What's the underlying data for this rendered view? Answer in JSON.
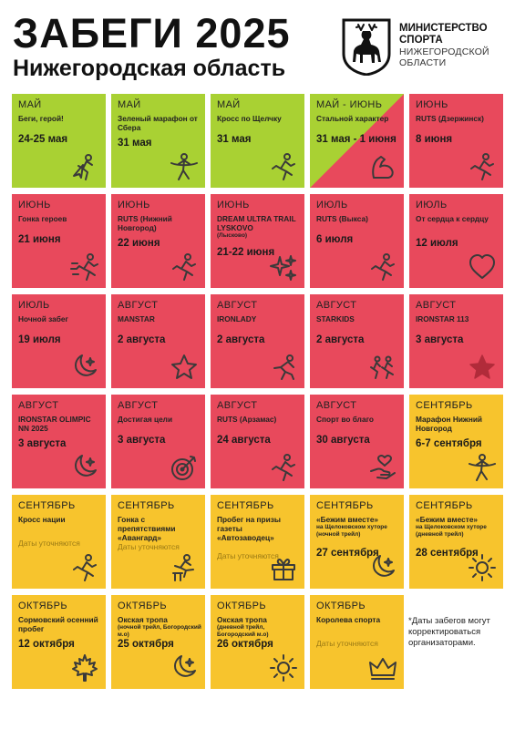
{
  "header": {
    "title": "ЗАБЕГИ 2025",
    "subtitle": "Нижегородская область",
    "ministry": [
      "МИНИСТЕРСТВО",
      "СПОРТА",
      "НИЖЕГОРОДСКОЙ",
      "ОБЛАСТИ"
    ]
  },
  "colors": {
    "green": "#a9d133",
    "red": "#e8495c",
    "yellow": "#f7c42d"
  },
  "events": [
    {
      "month": "МАЙ",
      "name": "Беги, герой!",
      "date": "24-25 мая",
      "color": "green",
      "icon": "hero-runner-icon"
    },
    {
      "month": "МАЙ",
      "name": "Зеленый марафон от Сбера",
      "date": "31 мая",
      "color": "green",
      "icon": "finish-line-icon"
    },
    {
      "month": "МАЙ",
      "name": "Кросс по Щелчку",
      "date": "31 мая",
      "color": "green",
      "icon": "runner-icon"
    },
    {
      "month": "МАЙ - ИЮНЬ",
      "name": "Стальной характер",
      "date": "31 мая - 1 июня",
      "color": "split",
      "icon": "muscle-arm-icon"
    },
    {
      "month": "ИЮНЬ",
      "name": "RUTS (Дзержинск)",
      "date": "8 июня",
      "color": "red",
      "icon": "runner-icon"
    },
    {
      "month": "ИЮНЬ",
      "name": "Гонка героев",
      "date": "21 июня",
      "color": "red",
      "icon": "fast-runner-icon"
    },
    {
      "month": "ИЮНЬ",
      "name": "RUTS (Нижний Новгород)",
      "date": "22 июня",
      "color": "red",
      "icon": "runner-icon"
    },
    {
      "month": "ИЮНЬ",
      "name": "DREAM ULTRA TRAIL LYSKOVO",
      "name_sub": "(Лысково)",
      "date": "21-22 июня",
      "color": "red",
      "icon": "sparkles-icon"
    },
    {
      "month": "ИЮЛЬ",
      "name": "RUTS (Выкса)",
      "date": "6 июля",
      "color": "red",
      "icon": "runner-icon"
    },
    {
      "month": "ИЮЛЬ",
      "name": "От сердца к сердцу",
      "date": "12 июля",
      "color": "red",
      "icon": "heart-icon"
    },
    {
      "month": "ИЮЛЬ",
      "name": "Ночной забег",
      "date": "19 июля",
      "color": "red",
      "icon": "moon-icon"
    },
    {
      "month": "АВГУСТ",
      "name": "MANSTAR",
      "date": "2 августа",
      "color": "red",
      "icon": "star-icon"
    },
    {
      "month": "АВГУСТ",
      "name": "IRONLADY",
      "date": "2 августа",
      "color": "red",
      "icon": "sprinter-icon"
    },
    {
      "month": "АВГУСТ",
      "name": "STARKIDS",
      "date": "2 августа",
      "color": "red",
      "icon": "kids-runners-icon"
    },
    {
      "month": "АВГУСТ",
      "name": "IRONSTAR 113",
      "date": "3 августа",
      "color": "red",
      "icon": "filled-star-icon"
    },
    {
      "month": "АВГУСТ",
      "name": "IRONSTAR OLIMPIC NN 2025",
      "date": "3 августа",
      "color": "red",
      "icon": "moon-icon"
    },
    {
      "month": "АВГУСТ",
      "name": "Достигая цели",
      "date": "3 августа",
      "color": "red",
      "icon": "target-icon"
    },
    {
      "month": "АВГУСТ",
      "name": "RUTS (Арзамас)",
      "date": "24 августа",
      "color": "red",
      "icon": "runner-icon"
    },
    {
      "month": "АВГУСТ",
      "name": "Спорт во благо",
      "date": "30 августа",
      "color": "red",
      "icon": "heart-hand-icon"
    },
    {
      "month": "СЕНТЯБРЬ",
      "name": "Марафон Нижний Новгород",
      "date": "6-7 сентября",
      "color": "yellow",
      "icon": "finish-line-icon"
    },
    {
      "month": "СЕНТЯБРЬ",
      "name": "Кросс нации",
      "tbd": "Даты уточняются",
      "color": "yellow",
      "icon": "runner-icon"
    },
    {
      "month": "СЕНТЯБРЬ",
      "name": "Гонка с препятствиями «Авангард»",
      "tbd": "Даты уточняются",
      "color": "yellow",
      "icon": "hurdle-runner-icon"
    },
    {
      "month": "СЕНТЯБРЬ",
      "name": "Пробег на призы газеты «Автозаводец»",
      "tbd": "Даты уточняются",
      "color": "yellow",
      "icon": "gift-icon"
    },
    {
      "month": "СЕНТЯБРЬ",
      "name": "«Бежим вместе»",
      "name_rest": "на Щелоковском хуторе",
      "name_sub": "(ночной трейл)",
      "date": "27 сентября",
      "color": "yellow",
      "icon": "moon-icon"
    },
    {
      "month": "СЕНТЯБРЬ",
      "name": "«Бежим вместе»",
      "name_rest": "на Щелоковском хуторе",
      "name_sub": "(дневной трейл)",
      "date": "28 сентября",
      "color": "yellow",
      "icon": "sun-icon"
    },
    {
      "month": "ОКТЯБРЬ",
      "name": "Сормовский осенний пробег",
      "date": "12 октября",
      "color": "yellow",
      "icon": "maple-leaf-icon"
    },
    {
      "month": "ОКТЯБРЬ",
      "name": "Окская тропа",
      "name_sub": "(ночной трейл, Богородский м.о)",
      "date": "25 октября",
      "color": "yellow",
      "icon": "moon-icon"
    },
    {
      "month": "ОКТЯБРЬ",
      "name": "Окская тропа",
      "name_sub": "(дневной трейл, Богородский м.о)",
      "date": "26 октября",
      "color": "yellow",
      "icon": "sun-icon"
    },
    {
      "month": "ОКТЯБРЬ",
      "name": "Королева спорта",
      "tbd": "Даты уточняются",
      "color": "yellow",
      "icon": "crown-icon"
    }
  ],
  "note": "*Даты забегов могут корректироваться организаторами."
}
